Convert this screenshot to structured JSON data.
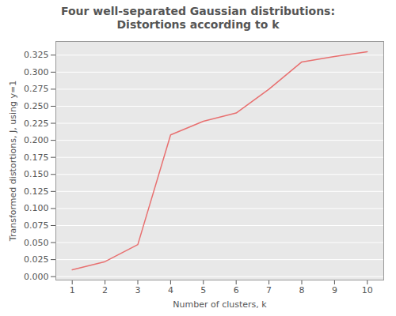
{
  "chart_data": {
    "type": "line",
    "title": "Four well-separated Gaussian distributions:\nDistortions according to k",
    "xlabel": "Number of clusters, k",
    "ylabel": "Transformed distortions, J, using y=1",
    "x": [
      1,
      2,
      3,
      4,
      5,
      6,
      7,
      8,
      9,
      10
    ],
    "values": [
      0.01,
      0.022,
      0.047,
      0.208,
      0.228,
      0.24,
      0.275,
      0.315,
      0.323,
      0.33
    ],
    "color": "#e87070",
    "xlim": [
      0.5,
      10.5
    ],
    "xticks": [
      1,
      2,
      3,
      4,
      5,
      6,
      7,
      8,
      9,
      10
    ],
    "ylim": [
      -0.005,
      0.345
    ],
    "yticks": [
      {
        "value": 0,
        "label": "0.000"
      },
      {
        "value": 0.025,
        "label": "0.025"
      },
      {
        "value": 0.05,
        "label": "0.050"
      },
      {
        "value": 0.075,
        "label": "0.075"
      },
      {
        "value": 0.1,
        "label": "0.100"
      },
      {
        "value": 0.125,
        "label": "0.125"
      },
      {
        "value": 0.15,
        "label": "0.150"
      },
      {
        "value": 0.175,
        "label": "0.175"
      },
      {
        "value": 0.2,
        "label": "0.200"
      },
      {
        "value": 0.225,
        "label": "0.225"
      },
      {
        "value": 0.25,
        "label": "0.250"
      },
      {
        "value": 0.275,
        "label": "0.275"
      },
      {
        "value": 0.3,
        "label": "0.300"
      },
      {
        "value": 0.325,
        "label": "0.325"
      }
    ],
    "grid": true
  }
}
